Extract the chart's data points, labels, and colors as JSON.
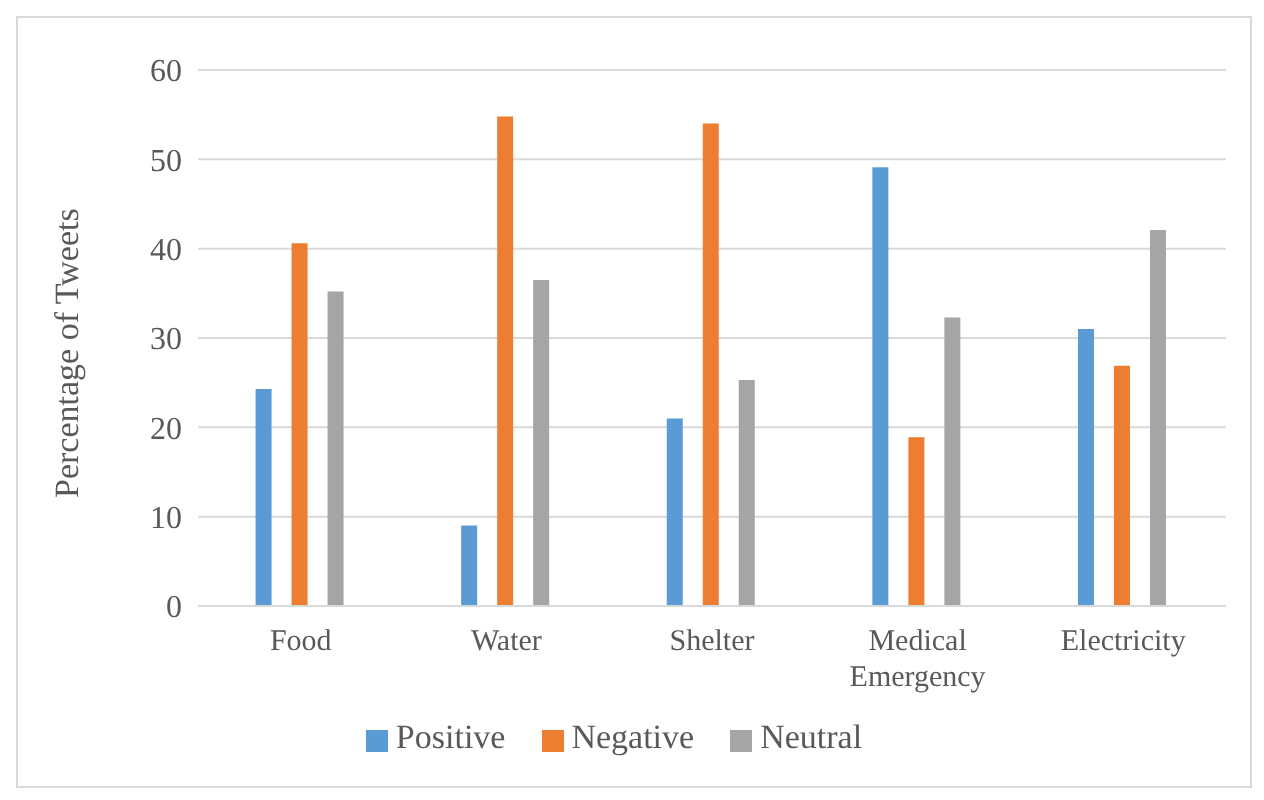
{
  "chart_data": {
    "type": "bar",
    "ylabel": "Percentage of Tweets",
    "categories": [
      "Food",
      "Water",
      "Shelter",
      "Medical Emergency",
      "Electricity"
    ],
    "series": [
      {
        "name": "Positive",
        "color": "#5b9bd5",
        "values": [
          24.3,
          9,
          21,
          49.1,
          31
        ]
      },
      {
        "name": "Negative",
        "color": "#ed7d31",
        "values": [
          40.6,
          54.8,
          54,
          18.9,
          26.9
        ]
      },
      {
        "name": "Neutral",
        "color": "#a5a5a5",
        "values": [
          35.2,
          36.5,
          25.3,
          32.3,
          42.1
        ]
      }
    ],
    "ylim": [
      0,
      60
    ],
    "yticks": [
      0,
      10,
      20,
      30,
      40,
      50,
      60
    ],
    "grid": "y",
    "legend": "bottom"
  }
}
